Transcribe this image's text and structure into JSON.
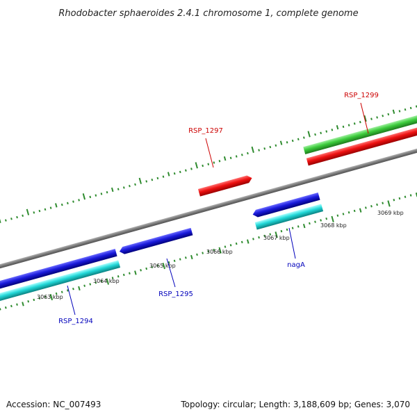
{
  "title": "Rhodobacter sphaeroides 2.4.1 chromosome 1, complete genome",
  "accession_text": "Accession: NC_007493",
  "summary_text": "Topology: circular; Length: 3,188,609 bp; Genes: 3,070",
  "colors": {
    "backbone": "#808080",
    "tick": "#2e8b2e",
    "forward_cds": "#e01010",
    "forward_gene": "#33cc33",
    "reverse_cds": "#1a1adb",
    "reverse_gene": "#22cccc",
    "forward_label": "#cc0000",
    "reverse_label": "#0000bb"
  },
  "scale": {
    "unit": "kbp",
    "labels": [
      "3063 kbp",
      "3064 kbp",
      "3065 kbp",
      "3066 kbp",
      "3067 kbp",
      "3068 kbp",
      "3069 kbp"
    ],
    "label_values": [
      3063,
      3064,
      3065,
      3066,
      3067,
      3068,
      3069
    ]
  },
  "features": [
    {
      "name": "RSP_1294",
      "strand": "reverse",
      "show_label": true
    },
    {
      "name": "RSP_1295",
      "strand": "reverse",
      "show_label": true
    },
    {
      "name": "RSP_1297",
      "strand": "forward",
      "show_label": true
    },
    {
      "name": "nagA",
      "strand": "reverse",
      "show_label": true
    },
    {
      "name": "RSP_1299",
      "strand": "forward",
      "show_label": true
    }
  ]
}
